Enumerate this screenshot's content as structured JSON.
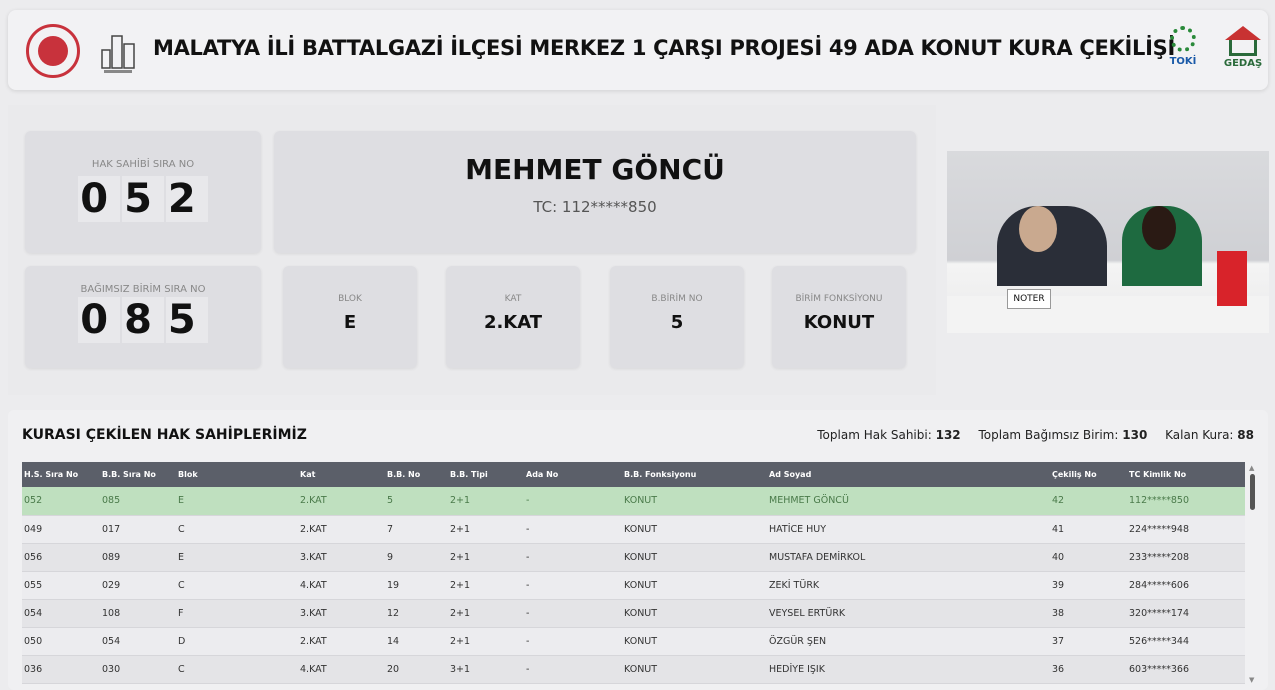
{
  "header": {
    "title": "MALATYA İLİ BATTALGAZİ İLÇESİ MERKEZ 1 ÇARŞI PROJESİ 49 ADA KONUT KURA ÇEKİLİŞİ",
    "logo_right1": "TOKİ",
    "logo_right2": "GEDAŞ"
  },
  "current": {
    "hak_sahibi_label": "HAK SAHİBİ SIRA NO",
    "hak_sahibi_digits": [
      "0",
      "5",
      "2"
    ],
    "name": "MEHMET GÖNCÜ",
    "tc": "TC: 112*****850",
    "bagimsiz_label": "BAĞIMSIZ BİRİM SIRA NO",
    "bagimsiz_digits": [
      "0",
      "8",
      "5"
    ],
    "fields": [
      {
        "label": "BLOK",
        "value": "E"
      },
      {
        "label": "KAT",
        "value": "2.KAT"
      },
      {
        "label": "B.BİRİM NO",
        "value": "5"
      },
      {
        "label": "BİRİM FONKSİYONU",
        "value": "KONUT"
      }
    ]
  },
  "video": {
    "noter_sign": "NOTER"
  },
  "list": {
    "title": "KURASI ÇEKİLEN HAK SAHİPLERİMİZ",
    "stats": [
      {
        "label": "Toplam Hak Sahibi:",
        "value": "132"
      },
      {
        "label": "Toplam Bağımsız Birim:",
        "value": "130"
      },
      {
        "label": "Kalan Kura:",
        "value": "88"
      }
    ],
    "columns": [
      "H.S. Sıra No",
      "B.B. Sıra No",
      "Blok",
      "Kat",
      "B.B. No",
      "B.B. Tipi",
      "Ada No",
      "B.B. Fonksiyonu",
      "Ad Soyad",
      "Çekiliş No",
      "TC Kimlik No"
    ],
    "rows": [
      [
        "052",
        "085",
        "E",
        "2.KAT",
        "5",
        "2+1",
        "-",
        "KONUT",
        "MEHMET GÖNCÜ",
        "42",
        "112*****850"
      ],
      [
        "049",
        "017",
        "C",
        "2.KAT",
        "7",
        "2+1",
        "-",
        "KONUT",
        "HATİCE HUY",
        "41",
        "224*****948"
      ],
      [
        "056",
        "089",
        "E",
        "3.KAT",
        "9",
        "2+1",
        "-",
        "KONUT",
        "MUSTAFA DEMİRKOL",
        "40",
        "233*****208"
      ],
      [
        "055",
        "029",
        "C",
        "4.KAT",
        "19",
        "2+1",
        "-",
        "KONUT",
        "ZEKİ TÜRK",
        "39",
        "284*****606"
      ],
      [
        "054",
        "108",
        "F",
        "3.KAT",
        "12",
        "2+1",
        "-",
        "KONUT",
        "VEYSEL ERTÜRK",
        "38",
        "320*****174"
      ],
      [
        "050",
        "054",
        "D",
        "2.KAT",
        "14",
        "2+1",
        "-",
        "KONUT",
        "ÖZGÜR ŞEN",
        "37",
        "526*****344"
      ],
      [
        "036",
        "030",
        "C",
        "4.KAT",
        "20",
        "3+1",
        "-",
        "KONUT",
        "HEDİYE IŞIK",
        "36",
        "603*****366"
      ]
    ],
    "highlight_color": "#bfe0bf"
  }
}
